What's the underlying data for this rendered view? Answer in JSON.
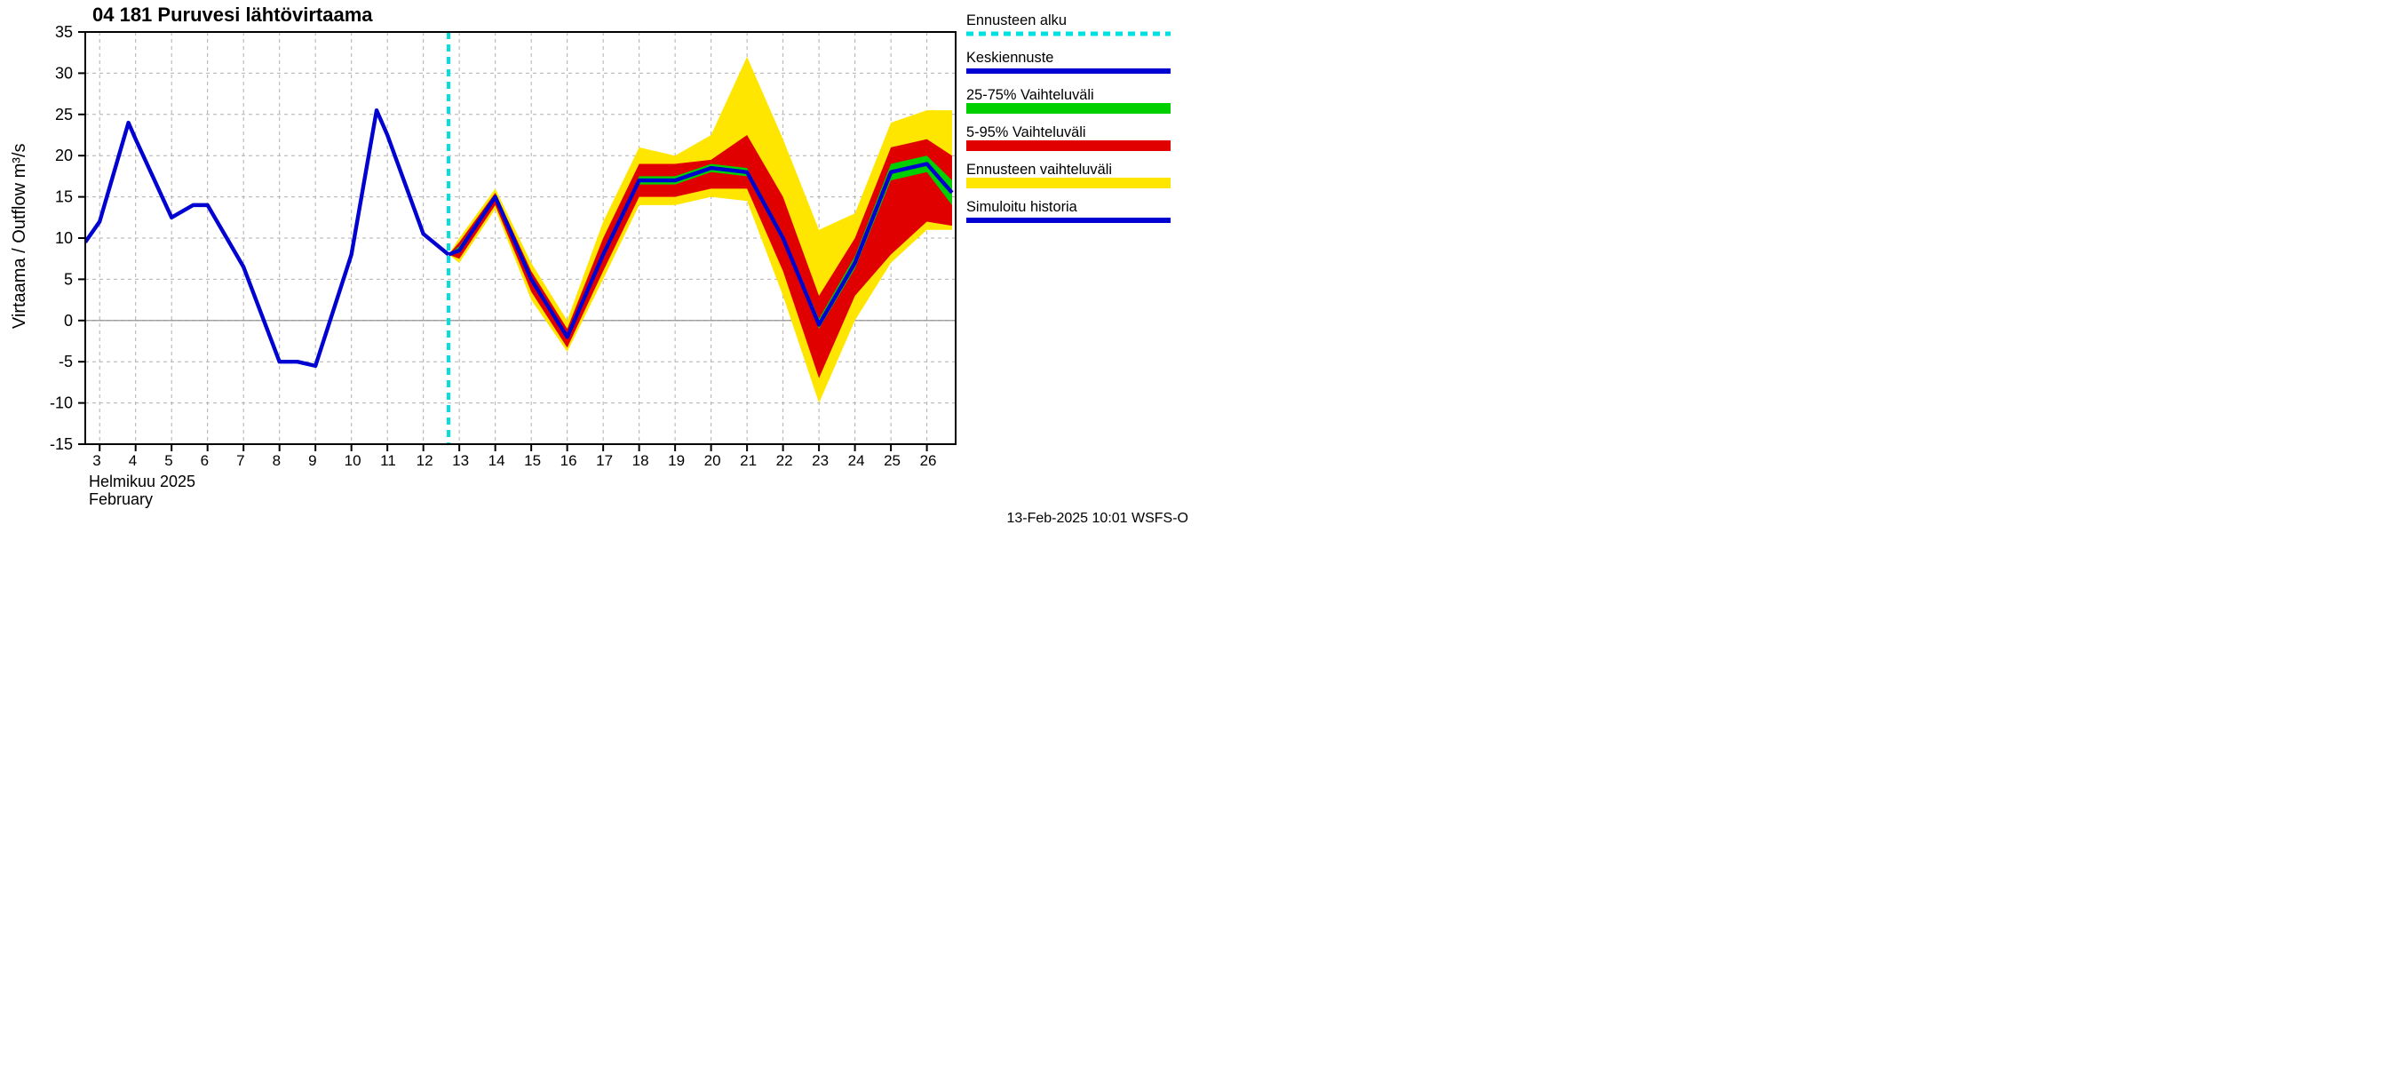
{
  "chart": {
    "type": "line-band",
    "title": "04 181 Puruvesi lähtövirtaama",
    "ylabel": "Virtaama / Outflow    m³/s",
    "xlabel_top": "Helmikuu  2025",
    "xlabel_bottom": "February",
    "footer": "13-Feb-2025 10:01 WSFS-O",
    "background_color": "#ffffff",
    "grid_color": "#b0b0b0",
    "axis_color": "#000000",
    "x": {
      "ticks": [
        3,
        4,
        5,
        6,
        7,
        8,
        9,
        10,
        11,
        12,
        13,
        14,
        15,
        16,
        17,
        18,
        19,
        20,
        21,
        22,
        23,
        24,
        25,
        26
      ],
      "min": 2.6,
      "max": 26.8
    },
    "y": {
      "ticks": [
        -15,
        -10,
        -5,
        0,
        5,
        10,
        15,
        20,
        25,
        30,
        35
      ],
      "min": -15,
      "max": 35
    },
    "forecast_start_x": 12.7,
    "forecast_line_color": "#00e0e0",
    "history": {
      "color": "#0000d0",
      "width": 4,
      "points": [
        [
          2.6,
          9.5
        ],
        [
          3,
          12.0
        ],
        [
          3.8,
          24.0
        ],
        [
          4,
          22.0
        ],
        [
          5,
          12.5
        ],
        [
          5.6,
          14.0
        ],
        [
          6,
          14.0
        ],
        [
          7,
          6.5
        ],
        [
          8,
          -5.0
        ],
        [
          8.5,
          -5.0
        ],
        [
          9,
          -5.5
        ],
        [
          10,
          8.0
        ],
        [
          10.7,
          25.5
        ],
        [
          11,
          22.5
        ],
        [
          12,
          10.5
        ],
        [
          12.7,
          8.0
        ]
      ]
    },
    "forecast_median": {
      "color": "#0000d0",
      "width": 4,
      "points": [
        [
          12.7,
          8.0
        ],
        [
          13,
          8.5
        ],
        [
          14,
          15.0
        ],
        [
          15,
          5.0
        ],
        [
          16,
          -2.0
        ],
        [
          17,
          8.0
        ],
        [
          18,
          17.0
        ],
        [
          19,
          17.0
        ],
        [
          20,
          18.5
        ],
        [
          21,
          18.0
        ],
        [
          22,
          10.0
        ],
        [
          23,
          -0.5
        ],
        [
          24,
          7.0
        ],
        [
          25,
          18.0
        ],
        [
          26,
          19.0
        ],
        [
          26.7,
          15.5
        ]
      ]
    },
    "band_2575": {
      "color": "#00d000",
      "upper": [
        [
          12.7,
          8.0
        ],
        [
          13,
          9.0
        ],
        [
          14,
          15.2
        ],
        [
          15,
          5.3
        ],
        [
          16,
          -1.7
        ],
        [
          17,
          8.5
        ],
        [
          18,
          17.5
        ],
        [
          19,
          17.5
        ],
        [
          20,
          19.0
        ],
        [
          21,
          18.5
        ],
        [
          22,
          10.5
        ],
        [
          23,
          0.2
        ],
        [
          24,
          7.8
        ],
        [
          25,
          19.0
        ],
        [
          26,
          20.0
        ],
        [
          26.7,
          17.0
        ]
      ],
      "lower": [
        [
          12.7,
          8.0
        ],
        [
          13,
          8.2
        ],
        [
          14,
          14.7
        ],
        [
          15,
          4.7
        ],
        [
          16,
          -2.3
        ],
        [
          17,
          7.5
        ],
        [
          18,
          16.5
        ],
        [
          19,
          16.5
        ],
        [
          20,
          18.0
        ],
        [
          21,
          17.5
        ],
        [
          22,
          9.5
        ],
        [
          23,
          -1.0
        ],
        [
          24,
          6.3
        ],
        [
          25,
          17.0
        ],
        [
          26,
          18.0
        ],
        [
          26.7,
          14.0
        ]
      ]
    },
    "band_0595": {
      "color": "#e00000",
      "upper": [
        [
          12.7,
          8.0
        ],
        [
          13,
          9.5
        ],
        [
          14,
          15.5
        ],
        [
          15,
          6.0
        ],
        [
          16,
          -1.0
        ],
        [
          17,
          10.0
        ],
        [
          18,
          19.0
        ],
        [
          19,
          19.0
        ],
        [
          20,
          19.5
        ],
        [
          21,
          22.5
        ],
        [
          22,
          15.0
        ],
        [
          23,
          3.0
        ],
        [
          24,
          10.0
        ],
        [
          25,
          21.0
        ],
        [
          26,
          22.0
        ],
        [
          26.7,
          20.0
        ]
      ],
      "lower": [
        [
          12.7,
          8.0
        ],
        [
          13,
          7.5
        ],
        [
          14,
          14.0
        ],
        [
          15,
          3.5
        ],
        [
          16,
          -3.3
        ],
        [
          17,
          6.0
        ],
        [
          18,
          15.0
        ],
        [
          19,
          15.0
        ],
        [
          20,
          16.0
        ],
        [
          21,
          16.0
        ],
        [
          22,
          6.0
        ],
        [
          23,
          -7.0
        ],
        [
          24,
          3.0
        ],
        [
          25,
          8.0
        ],
        [
          26,
          12.0
        ],
        [
          26.7,
          11.5
        ]
      ]
    },
    "band_full": {
      "color": "#ffe600",
      "upper": [
        [
          12.7,
          8.0
        ],
        [
          13,
          10.0
        ],
        [
          14,
          16.0
        ],
        [
          15,
          7.0
        ],
        [
          16,
          0.0
        ],
        [
          17,
          12.0
        ],
        [
          18,
          21.0
        ],
        [
          19,
          20.0
        ],
        [
          20,
          22.5
        ],
        [
          21,
          32.0
        ],
        [
          22,
          22.0
        ],
        [
          23,
          11.0
        ],
        [
          24,
          13.0
        ],
        [
          25,
          24.0
        ],
        [
          26,
          25.5
        ],
        [
          26.7,
          25.5
        ]
      ],
      "lower": [
        [
          12.7,
          8.0
        ],
        [
          13,
          7.0
        ],
        [
          14,
          13.5
        ],
        [
          15,
          2.5
        ],
        [
          16,
          -3.8
        ],
        [
          17,
          5.0
        ],
        [
          18,
          14.0
        ],
        [
          19,
          14.0
        ],
        [
          20,
          15.0
        ],
        [
          21,
          14.5
        ],
        [
          22,
          3.0
        ],
        [
          23,
          -10.0
        ],
        [
          24,
          0.0
        ],
        [
          25,
          7.0
        ],
        [
          26,
          11.0
        ],
        [
          26.7,
          11.0
        ]
      ]
    },
    "legend": {
      "items": [
        {
          "key": "forecast_start",
          "label": "Ennusteen alku",
          "swatch": "dash",
          "color": "#00e0e0"
        },
        {
          "key": "median",
          "label": "Keskiennuste",
          "swatch": "line",
          "color": "#0000d0"
        },
        {
          "key": "p2575",
          "label": "25-75% Vaihteluväli",
          "swatch": "fill",
          "color": "#00d000"
        },
        {
          "key": "p0595",
          "label": "5-95% Vaihteluväli",
          "swatch": "fill",
          "color": "#e00000"
        },
        {
          "key": "full",
          "label": "Ennusteen vaihteluväli",
          "swatch": "fill",
          "color": "#ffe600"
        },
        {
          "key": "history",
          "label": "Simuloitu historia",
          "swatch": "line",
          "color": "#0000d0"
        }
      ]
    }
  }
}
